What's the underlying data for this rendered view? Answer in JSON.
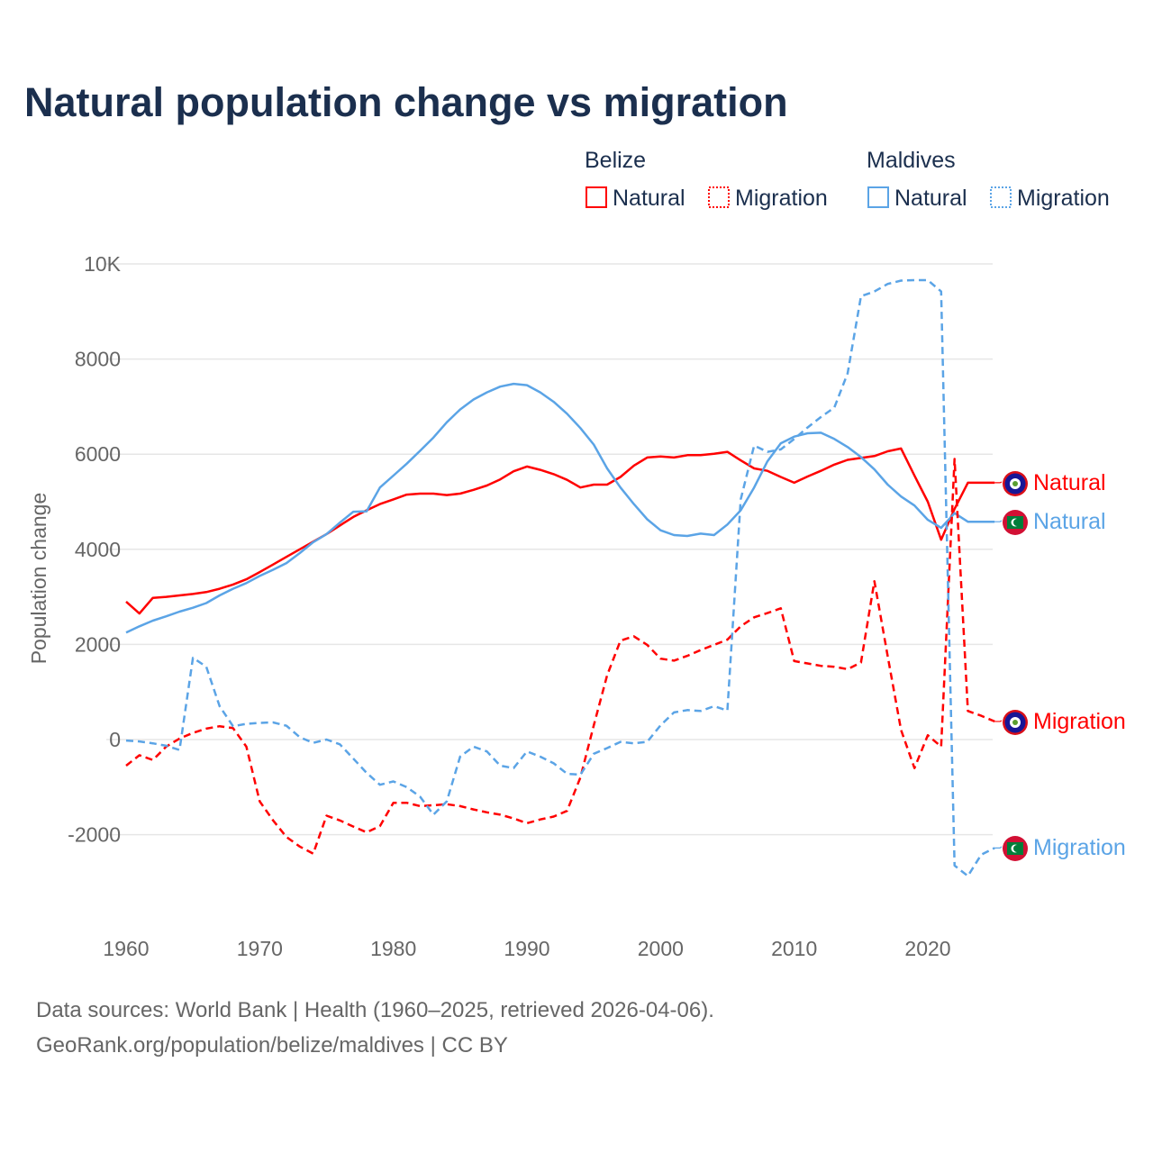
{
  "title": "Natural population change vs migration",
  "legend": {
    "groups": [
      {
        "name": "Belize",
        "items": [
          "Natural",
          "Migration"
        ]
      },
      {
        "name": "Maldives",
        "items": [
          "Natural",
          "Migration"
        ]
      }
    ]
  },
  "footer": {
    "line1": "Data sources: World Bank | Health (1960–2025, retrieved 2026-04-06).",
    "line2": "GeoRank.org/population/belize/maldives | CC BY"
  },
  "colors": {
    "belize": "#ff0000",
    "maldives": "#5ba4e6",
    "grid": "#e6e6e6",
    "text": "#666666",
    "title": "#1b2f4e"
  },
  "chart_data": {
    "type": "line",
    "title": "Natural population change vs migration",
    "xlabel": "",
    "ylabel": "Population change",
    "xlim": [
      1960,
      2025
    ],
    "ylim": [
      -3300,
      10000
    ],
    "yticks": [
      -2000,
      0,
      2000,
      4000,
      6000,
      8000,
      10000
    ],
    "ytick_labels": [
      "-2000",
      "0",
      "2000",
      "4000",
      "6000",
      "8000",
      "10K"
    ],
    "xticks": [
      1960,
      1970,
      1980,
      1990,
      2000,
      2010,
      2020
    ],
    "xtick_labels": [
      "1960",
      "1970",
      "1980",
      "1990",
      "2000",
      "2010",
      "2020"
    ],
    "grid": true,
    "legend_placement": "top-right",
    "x_start": 1960,
    "series": [
      {
        "name": "Belize Natural",
        "end_label": "Natural",
        "country": "belize",
        "dash": false,
        "values": [
          2900,
          2650,
          2980,
          3000,
          3030,
          3060,
          3100,
          3170,
          3260,
          3370,
          3520,
          3680,
          3840,
          4000,
          4160,
          4320,
          4500,
          4680,
          4820,
          4950,
          5050,
          5150,
          5170,
          5170,
          5140,
          5170,
          5250,
          5340,
          5470,
          5640,
          5740,
          5670,
          5580,
          5460,
          5300,
          5360,
          5360,
          5520,
          5760,
          5930,
          5950,
          5930,
          5980,
          5980,
          6010,
          6050,
          5870,
          5700,
          5650,
          5520,
          5400,
          5530,
          5650,
          5780,
          5880,
          5920,
          5960,
          6060,
          6120,
          5550,
          5000,
          4200,
          4850,
          5400,
          5400,
          5400
        ]
      },
      {
        "name": "Maldives Natural",
        "end_label": "Natural",
        "country": "maldives",
        "dash": false,
        "values": [
          2250,
          2380,
          2500,
          2590,
          2690,
          2770,
          2870,
          3030,
          3170,
          3290,
          3440,
          3570,
          3710,
          3920,
          4150,
          4320,
          4560,
          4790,
          4800,
          5300,
          5550,
          5800,
          6070,
          6350,
          6670,
          6940,
          7150,
          7300,
          7420,
          7480,
          7450,
          7300,
          7100,
          6850,
          6550,
          6200,
          5700,
          5300,
          4950,
          4630,
          4400,
          4300,
          4280,
          4330,
          4300,
          4520,
          4820,
          5300,
          5850,
          6230,
          6370,
          6440,
          6450,
          6320,
          6150,
          5940,
          5680,
          5360,
          5110,
          4920,
          4620,
          4450,
          4760,
          4580,
          4580,
          4580
        ]
      },
      {
        "name": "Belize Migration",
        "end_label": "Migration",
        "country": "belize",
        "dash": true,
        "values": [
          -550,
          -330,
          -430,
          -150,
          20,
          140,
          230,
          280,
          240,
          -150,
          -1300,
          -1700,
          -2050,
          -2250,
          -2400,
          -1600,
          -1700,
          -1830,
          -1950,
          -1820,
          -1330,
          -1330,
          -1400,
          -1380,
          -1360,
          -1400,
          -1470,
          -1530,
          -1580,
          -1660,
          -1760,
          -1680,
          -1620,
          -1500,
          -800,
          300,
          1350,
          2080,
          2170,
          1990,
          1700,
          1660,
          1760,
          1880,
          1990,
          2100,
          2380,
          2570,
          2660,
          2760,
          1650,
          1600,
          1550,
          1530,
          1480,
          1620,
          3330,
          1750,
          200,
          -600,
          90,
          -150,
          5900,
          600,
          500,
          380
        ]
      },
      {
        "name": "Maldives Migration",
        "end_label": "Migration",
        "country": "maldives",
        "dash": true,
        "values": [
          -20,
          -40,
          -80,
          -130,
          -220,
          1720,
          1530,
          700,
          280,
          330,
          350,
          360,
          290,
          50,
          -70,
          0,
          -100,
          -400,
          -700,
          -950,
          -880,
          -1000,
          -1200,
          -1580,
          -1300,
          -360,
          -150,
          -250,
          -550,
          -600,
          -250,
          -360,
          -500,
          -720,
          -740,
          -300,
          -180,
          -50,
          -80,
          -50,
          300,
          570,
          620,
          600,
          700,
          610,
          5050,
          6180,
          6050,
          6100,
          6320,
          6560,
          6780,
          6980,
          7700,
          9320,
          9420,
          9580,
          9650,
          9660,
          9660,
          9420,
          -2650,
          -2870,
          -2420,
          -2280
        ]
      }
    ]
  }
}
